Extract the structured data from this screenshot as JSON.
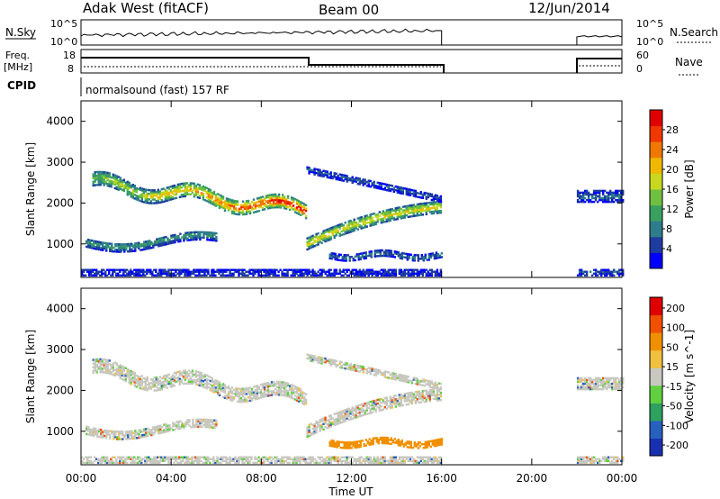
{
  "header": {
    "station": "Adak West (fitACF)",
    "beam": "Beam 00",
    "date": "12/Jun/2014"
  },
  "strip_labels": {
    "nsky": "N.Sky",
    "nsky_top": "10^5",
    "nsky_bottom": "10^0",
    "nsearch": "N.Search",
    "nsearch_top": "10^5",
    "nsearch_bottom": "10^0",
    "freq_line1": "Freq.",
    "freq_line2": "[MHz]",
    "freq_top": "18",
    "freq_bottom": "8",
    "nave": "Nave",
    "nave_top": "60",
    "nave_bottom": "0",
    "cpid": "CPID",
    "cpid_text": "normalsound (fast) 157 RF"
  },
  "colors": {
    "power": [
      "#0000ff",
      "#1e3ca0",
      "#2e7d8c",
      "#3aa060",
      "#6fc040",
      "#c8d820",
      "#f0b800",
      "#f07800",
      "#f03800",
      "#e00000"
    ],
    "velocity": [
      "#e00000",
      "#f05000",
      "#f09000",
      "#f0c040",
      "#c8c8c0",
      "#60d040",
      "#2ea060",
      "#2860c0",
      "#1830b0"
    ]
  },
  "chart_data": [
    {
      "type": "heatmap",
      "ylabel": "Slant Range [km]",
      "xlabel": "Time UT",
      "x_ticks": [
        "00:00",
        "04:00",
        "08:00",
        "12:00",
        "16:00",
        "20:00",
        "00:00"
      ],
      "x_range_hours": [
        0,
        24
      ],
      "y_ticks": [
        "1000",
        "2000",
        "3000",
        "4000"
      ],
      "y_range_km": [
        180,
        4500
      ],
      "colorbar": {
        "label": "Power [dB]",
        "ticks": [
          "4",
          "8",
          "12",
          "16",
          "20",
          "24",
          "28"
        ],
        "range": [
          0,
          32
        ]
      },
      "data_gap_hours": [
        16,
        22
      ]
    },
    {
      "type": "heatmap",
      "ylabel": "Slant Range [km]",
      "xlabel": "Time UT",
      "x_ticks": [
        "00:00",
        "04:00",
        "08:00",
        "12:00",
        "16:00",
        "20:00",
        "00:00"
      ],
      "x_range_hours": [
        0,
        24
      ],
      "y_ticks": [
        "1000",
        "2000",
        "3000",
        "4000"
      ],
      "y_range_km": [
        180,
        4500
      ],
      "colorbar": {
        "label": "Velocity [m s^-1]",
        "ticks": [
          "200",
          "100",
          "50",
          "15",
          "-15",
          "-50",
          "-100",
          "-200"
        ]
      },
      "data_gap_hours": [
        16,
        22
      ]
    }
  ],
  "xaxis": {
    "title": "Time UT"
  }
}
